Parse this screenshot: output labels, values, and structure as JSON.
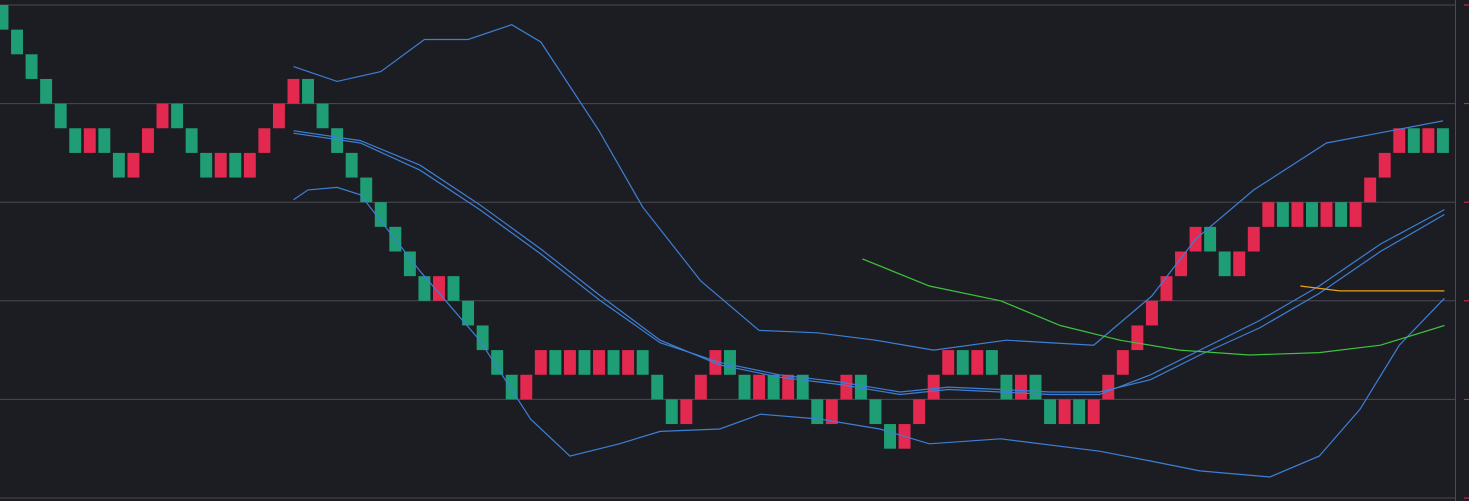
{
  "chart_data": {
    "type": "renko",
    "x": [
      0,
      1,
      2,
      3,
      4,
      5,
      6,
      7,
      8,
      9,
      10,
      11,
      12,
      13,
      14,
      15,
      16,
      17,
      18,
      19,
      20,
      21,
      22,
      23,
      24,
      25,
      26,
      27,
      28,
      29,
      30,
      31,
      32,
      33,
      34,
      35,
      36,
      37,
      38,
      39,
      40,
      41,
      42,
      43,
      44,
      45,
      46,
      47,
      48,
      49,
      50,
      51,
      52,
      53,
      54,
      55,
      56,
      57,
      58,
      59,
      60,
      61,
      62,
      63,
      64,
      65,
      66,
      67,
      68,
      69,
      70,
      71,
      72,
      73,
      74,
      75,
      76,
      77,
      78,
      79,
      80,
      81,
      82,
      83,
      84,
      85,
      86,
      87,
      88,
      89,
      90,
      91,
      92,
      93,
      94,
      95,
      96,
      97,
      98,
      99
    ],
    "open": [
      20,
      19,
      18,
      17,
      16,
      15,
      14,
      15,
      14,
      13,
      14,
      15,
      16,
      15,
      14,
      13,
      14,
      13,
      14,
      15,
      16,
      17,
      16,
      15,
      14,
      13,
      12,
      11,
      10,
      9,
      8,
      9,
      8,
      7,
      6,
      5,
      4,
      5,
      6,
      5,
      6,
      5,
      6,
      5,
      6,
      5,
      4,
      3,
      4,
      5,
      6,
      5,
      4,
      5,
      4,
      5,
      4,
      3,
      4,
      5,
      4,
      3,
      2,
      3,
      4,
      5,
      6,
      5,
      6,
      5,
      4,
      5,
      4,
      3,
      4,
      3,
      4,
      5,
      6,
      7,
      8,
      9,
      10,
      11,
      10,
      9,
      10,
      11,
      12,
      11,
      12,
      11,
      12,
      11,
      12,
      13,
      14,
      15,
      14,
      15
    ],
    "close": [
      19,
      18,
      17,
      16,
      15,
      14,
      15,
      14,
      13,
      14,
      15,
      16,
      15,
      14,
      13,
      14,
      13,
      14,
      15,
      16,
      17,
      16,
      15,
      14,
      13,
      12,
      11,
      10,
      9,
      8,
      9,
      8,
      7,
      6,
      5,
      4,
      5,
      6,
      5,
      6,
      5,
      6,
      5,
      6,
      5,
      4,
      3,
      4,
      5,
      6,
      5,
      4,
      5,
      4,
      5,
      4,
      3,
      4,
      5,
      4,
      3,
      2,
      3,
      4,
      5,
      6,
      5,
      6,
      5,
      4,
      5,
      4,
      3,
      4,
      3,
      4,
      5,
      6,
      7,
      8,
      9,
      10,
      11,
      10,
      9,
      10,
      11,
      12,
      11,
      12,
      11,
      12,
      11,
      12,
      13,
      14,
      15,
      14,
      15,
      14
    ],
    "up_color": "#e3294f",
    "down_color": "#1f9e76",
    "lines": [
      {
        "color": "#3d7fd6",
        "x": [
          20,
          23,
          26,
          29,
          32,
          35,
          37,
          41,
          44,
          48,
          52,
          56,
          60,
          64,
          69,
          75,
          79,
          82,
          86,
          91,
          99
        ],
        "values": [
          17.5,
          16.9,
          17.3,
          18.6,
          18.6,
          19.2,
          18.5,
          14.9,
          11.8,
          8.8,
          6.8,
          6.7,
          6.4,
          6.0,
          6.4,
          6.2,
          8.2,
          10.5,
          12.5,
          14.4,
          15.3
        ]
      },
      {
        "color": "#3d7fd6",
        "x": [
          20,
          24.6,
          28.7,
          32.8,
          37,
          41.1,
          45.2,
          49.3,
          53.4,
          57.6,
          61.7,
          65,
          68.6,
          72,
          75.4,
          78.9,
          82.3,
          86.4,
          90.5,
          94.7,
          99.1
        ],
        "values": [
          14.9,
          14.5,
          13.5,
          11.9,
          10.1,
          8.2,
          6.4,
          5.4,
          4.9,
          4.6,
          4.2,
          4.4,
          4.3,
          4.2,
          4.2,
          5.0,
          6.0,
          7.2,
          8.6,
          10.3,
          11.7
        ]
      },
      {
        "color": "#3d7fd6",
        "x": [
          20,
          24.6,
          28.7,
          32.8,
          37,
          41.1,
          45.2,
          49.3,
          53.4,
          57.6,
          61.7,
          65,
          68.6,
          72,
          75.4,
          78.9,
          82.3,
          86.4,
          90.5,
          94.7,
          99.1
        ],
        "values": [
          14.8,
          14.4,
          13.3,
          11.7,
          9.9,
          8.0,
          6.3,
          5.5,
          5.0,
          4.7,
          4.3,
          4.5,
          4.4,
          4.3,
          4.3,
          4.8,
          5.8,
          6.9,
          8.3,
          10.0,
          11.5
        ]
      },
      {
        "color": "#3d7fd6",
        "x": [
          20,
          21,
          23,
          24.6,
          28.7,
          32.8,
          36.3,
          39,
          42.4,
          45.2,
          49.3,
          52.1,
          56.2,
          60.3,
          63.7,
          68.6,
          75.4,
          78.9,
          82.3,
          87.1,
          90.5,
          93.3,
          96,
          99.1
        ],
        "values": [
          12.1,
          12.5,
          12.6,
          12.3,
          9.2,
          6.4,
          3.2,
          1.7,
          2.2,
          2.7,
          2.8,
          3.4,
          3.2,
          2.8,
          2.2,
          2.4,
          1.9,
          1.5,
          1.1,
          0.85,
          1.7,
          3.6,
          6.2,
          8.1
        ]
      },
      {
        "color": "#3fc23f",
        "x": [
          59.1,
          63.7,
          68.6,
          72.7,
          76.8,
          80.9,
          85.7,
          90.5,
          94.7,
          99.1
        ],
        "values": [
          9.7,
          8.6,
          8.0,
          7.0,
          6.4,
          6.0,
          5.8,
          5.9,
          6.2,
          7.0
        ]
      },
      {
        "color": "#e8a21a",
        "x": [
          89.2,
          91.9,
          99.1
        ],
        "values": [
          8.6,
          8.4,
          8.4
        ]
      }
    ],
    "xlim": [
      -0.17,
      99.83
    ],
    "ylim": [
      0,
      20
    ],
    "yticks": [
      0,
      4,
      8,
      12,
      16,
      20
    ],
    "grid": true
  }
}
